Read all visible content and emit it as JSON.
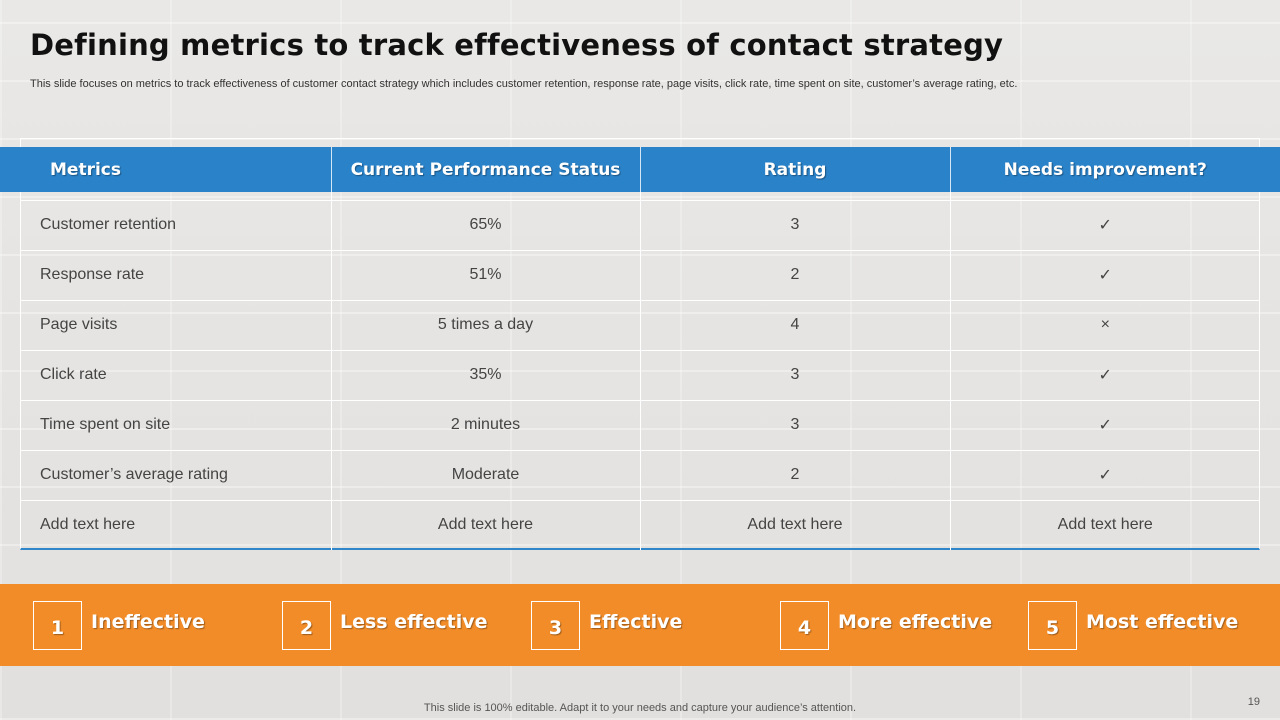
{
  "slide": {
    "title": "Defining metrics to track effectiveness of contact strategy",
    "subtitle": "This slide focuses on metrics to track effectiveness of customer contact strategy which includes customer retention, response rate, page visits, click rate, time spent on site, customer’s average rating, etc."
  },
  "table": {
    "headers": [
      "Metrics",
      "Current Performance Status",
      "Rating",
      "Needs improvement?"
    ],
    "rows": [
      {
        "metric": "Customer retention",
        "status": "65%",
        "rating": "3",
        "needs": "✓"
      },
      {
        "metric": "Response rate",
        "status": "51%",
        "rating": "2",
        "needs": "✓"
      },
      {
        "metric": "Page visits",
        "status": "5 times a day",
        "rating": "4",
        "needs": "×"
      },
      {
        "metric": "Click rate",
        "status": "35%",
        "rating": "3",
        "needs": "✓"
      },
      {
        "metric": "Time spent on site",
        "status": "2 minutes",
        "rating": "3",
        "needs": "✓"
      },
      {
        "metric": "Customer’s average rating",
        "status": "Moderate",
        "rating": "2",
        "needs": "✓"
      },
      {
        "metric": "Add text here",
        "status": "Add text here",
        "rating": "Add text here",
        "needs": "Add text here"
      }
    ]
  },
  "scale": [
    {
      "num": "1",
      "label": "Ineffective"
    },
    {
      "num": "2",
      "label": "Less effective"
    },
    {
      "num": "3",
      "label": "Effective"
    },
    {
      "num": "4",
      "label": "More effective"
    },
    {
      "num": "5",
      "label": "Most effective"
    }
  ],
  "footer": {
    "note": "This slide is 100% editable. Adapt it to your needs and capture your audience’s attention.",
    "page_number": "19"
  },
  "colors": {
    "header_blue": "#2a82c8",
    "scale_orange": "#f28c28"
  }
}
